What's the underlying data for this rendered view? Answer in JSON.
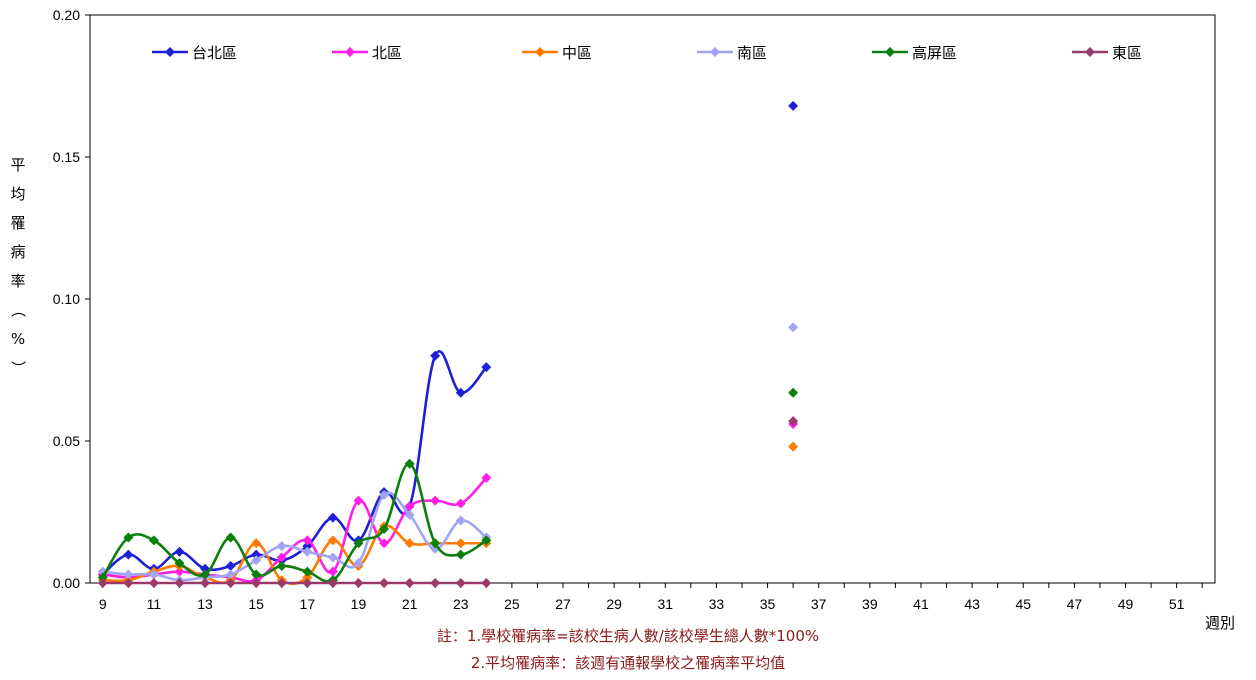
{
  "chart_data": {
    "type": "line",
    "xlabel": "週別",
    "ylabel": "平均罹病率（%）",
    "xlim": [
      9,
      52
    ],
    "ylim": [
      0,
      0.2
    ],
    "yticks": [
      "0.00",
      "0.05",
      "0.10",
      "0.15",
      "0.20"
    ],
    "xticks": [
      "9",
      "11",
      "13",
      "15",
      "17",
      "19",
      "21",
      "23",
      "25",
      "27",
      "29",
      "31",
      "33",
      "35",
      "37",
      "39",
      "41",
      "43",
      "45",
      "47",
      "49",
      "51"
    ],
    "legend_position": "top",
    "grid": false,
    "series": [
      {
        "name": "台北區",
        "color": "#1f1fd6",
        "x": [
          9,
          10,
          11,
          12,
          13,
          14,
          15,
          16,
          17,
          18,
          19,
          20,
          21,
          22,
          23,
          24
        ],
        "y": [
          0.003,
          0.01,
          0.005,
          0.011,
          0.005,
          0.006,
          0.01,
          0.008,
          0.013,
          0.023,
          0.015,
          0.032,
          0.027,
          0.08,
          0.067,
          0.076
        ],
        "isolated": [
          {
            "x": 36,
            "y": 0.168
          }
        ]
      },
      {
        "name": "北區",
        "color": "#ff1fe6",
        "x": [
          9,
          10,
          11,
          12,
          13,
          14,
          15,
          16,
          17,
          18,
          19,
          20,
          21,
          22,
          23,
          24
        ],
        "y": [
          0.003,
          0.002,
          0.003,
          0.004,
          0.003,
          0.002,
          0.001,
          0.009,
          0.015,
          0.004,
          0.029,
          0.014,
          0.027,
          0.029,
          0.028,
          0.037
        ],
        "isolated": [
          {
            "x": 36,
            "y": 0.056
          }
        ]
      },
      {
        "name": "中區",
        "color": "#ff7a00",
        "x": [
          9,
          10,
          11,
          12,
          13,
          14,
          15,
          16,
          17,
          18,
          19,
          20,
          21,
          22,
          23,
          24
        ],
        "y": [
          0.001,
          0.001,
          0.004,
          0.006,
          0.002,
          0.001,
          0.014,
          0.001,
          0.002,
          0.015,
          0.006,
          0.02,
          0.014,
          0.014,
          0.014,
          0.014
        ],
        "isolated": [
          {
            "x": 36,
            "y": 0.048
          }
        ]
      },
      {
        "name": "南區",
        "color": "#a4a4f4",
        "x": [
          9,
          10,
          11,
          12,
          13,
          14,
          15,
          16,
          17,
          18,
          19,
          20,
          21,
          22,
          23,
          24
        ],
        "y": [
          0.004,
          0.003,
          0.003,
          0.001,
          0.002,
          0.003,
          0.008,
          0.013,
          0.011,
          0.009,
          0.007,
          0.031,
          0.024,
          0.012,
          0.022,
          0.016
        ],
        "isolated": [
          {
            "x": 36,
            "y": 0.09
          }
        ]
      },
      {
        "name": "高屏區",
        "color": "#0a7f0a",
        "x": [
          9,
          10,
          11,
          12,
          13,
          14,
          15,
          16,
          17,
          18,
          19,
          20,
          21,
          22,
          23,
          24
        ],
        "y": [
          0.002,
          0.016,
          0.015,
          0.007,
          0.003,
          0.016,
          0.003,
          0.006,
          0.004,
          0.001,
          0.014,
          0.019,
          0.042,
          0.014,
          0.01,
          0.015
        ],
        "isolated": [
          {
            "x": 36,
            "y": 0.067
          }
        ]
      },
      {
        "name": "東區",
        "color": "#9b3a6a",
        "x": [
          9,
          10,
          11,
          12,
          13,
          14,
          15,
          16,
          17,
          18,
          19,
          20,
          21,
          22,
          23,
          24
        ],
        "y": [
          0,
          0,
          0,
          0,
          0,
          0,
          0,
          0,
          0,
          0,
          0,
          0,
          0,
          0,
          0,
          0
        ],
        "isolated": [
          {
            "x": 36,
            "y": 0.057
          }
        ]
      }
    ]
  },
  "notes": {
    "line1": "註：1.學校罹病率=該校生病人數/該校學生總人數*100%",
    "line2": "2.平均罹病率：該週有通報學校之罹病率平均值"
  }
}
